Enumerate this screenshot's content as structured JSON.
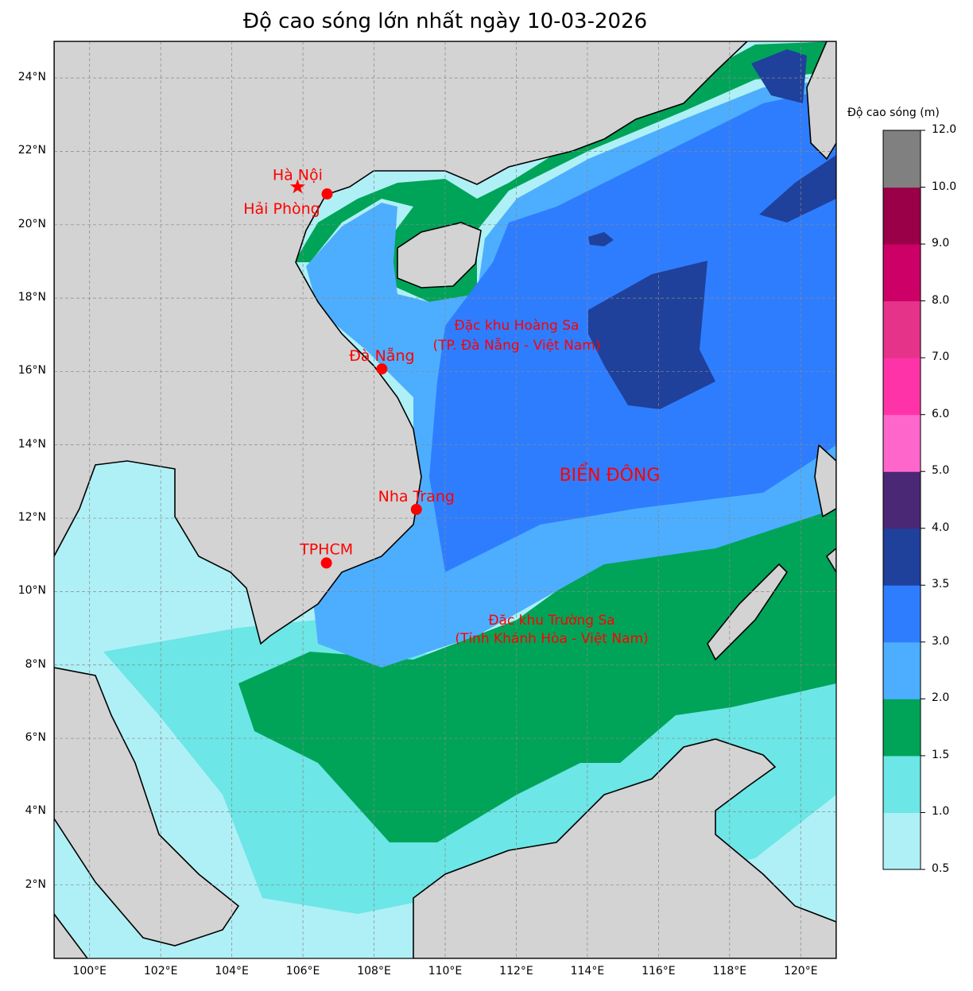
{
  "title": "Độ cao sóng lớn nhất ngày 10-03-2026",
  "map": {
    "lon_range": [
      99,
      121
    ],
    "lat_range": [
      0,
      25
    ],
    "lon_ticks": [
      {
        "v": 100,
        "label": "100°E"
      },
      {
        "v": 102,
        "label": "102°E"
      },
      {
        "v": 104,
        "label": "104°E"
      },
      {
        "v": 106,
        "label": "106°E"
      },
      {
        "v": 108,
        "label": "108°E"
      },
      {
        "v": 110,
        "label": "110°E"
      },
      {
        "v": 112,
        "label": "112°E"
      },
      {
        "v": 114,
        "label": "114°E"
      },
      {
        "v": 116,
        "label": "116°E"
      },
      {
        "v": 118,
        "label": "118°E"
      },
      {
        "v": 120,
        "label": "120°E"
      }
    ],
    "lat_ticks": [
      {
        "v": 2,
        "label": "2°N"
      },
      {
        "v": 4,
        "label": "4°N"
      },
      {
        "v": 6,
        "label": "6°N"
      },
      {
        "v": 8,
        "label": "8°N"
      },
      {
        "v": 10,
        "label": "10°N"
      },
      {
        "v": 12,
        "label": "12°N"
      },
      {
        "v": 14,
        "label": "14°N"
      },
      {
        "v": 16,
        "label": "16°N"
      },
      {
        "v": 18,
        "label": "18°N"
      },
      {
        "v": 20,
        "label": "20°N"
      },
      {
        "v": 22,
        "label": "22°N"
      },
      {
        "v": 24,
        "label": "24°N"
      }
    ],
    "land_color": "#d3d3d3",
    "marker_color": "#ff0000",
    "cities": [
      {
        "name": "Hà Nội",
        "lon": 105.85,
        "lat": 21.03,
        "marker": "star"
      },
      {
        "name": "Hải Phòng",
        "lon": 106.68,
        "lat": 20.84,
        "marker": "dot"
      },
      {
        "name": "Đà Nẵng",
        "lon": 108.22,
        "lat": 16.07,
        "marker": "dot"
      },
      {
        "name": "Nha Trang",
        "lon": 109.19,
        "lat": 12.24,
        "marker": "dot"
      },
      {
        "name": "TPHCM",
        "lon": 106.66,
        "lat": 10.78,
        "marker": "dot"
      }
    ],
    "regions": {
      "hoang_sa_1": "Đặc khu Hoàng Sa",
      "hoang_sa_2": "(TP. Đà Nẵng - Việt Nam)",
      "truong_sa_1": "Đặc khu Trường Sa",
      "truong_sa_2": "(Tỉnh Khánh Hòa - Việt Nam)",
      "bien_dong": "BIỂN ĐÔNG"
    }
  },
  "colorbar": {
    "title": "Độ cao sóng (m)",
    "bounds": [
      "0.5",
      "1.0",
      "1.5",
      "2.0",
      "3.0",
      "3.5",
      "4.0",
      "5.0",
      "6.0",
      "7.0",
      "8.0",
      "9.0",
      "10.0",
      "12.0"
    ],
    "colors": [
      "#aff0f6",
      "#6ce6e6",
      "#00a458",
      "#4daeff",
      "#2f7dff",
      "#1f419b",
      "#4a2875",
      "#ff66cc",
      "#ff33a8",
      "#e6338a",
      "#cc0066",
      "#990048",
      "#808080"
    ]
  }
}
